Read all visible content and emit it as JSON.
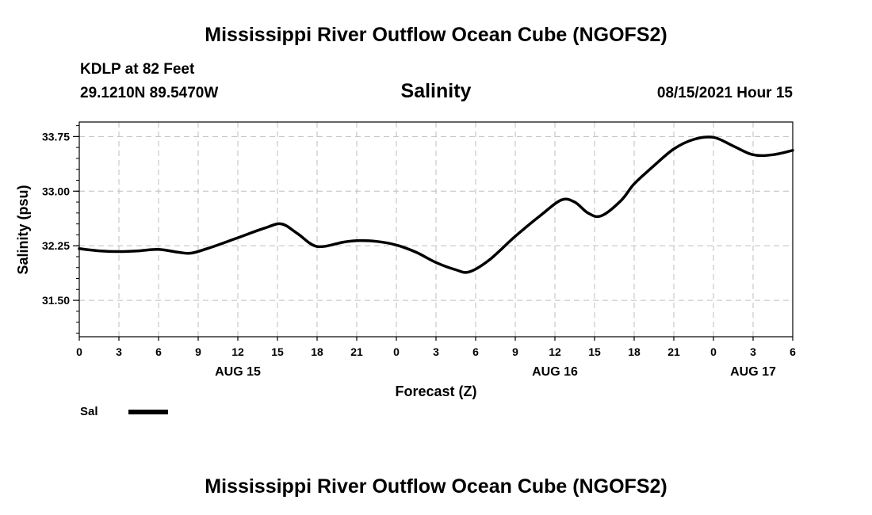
{
  "header": {
    "title": "Mississippi River Outflow Ocean Cube (NGOFS2)",
    "station": "KDLP at 82 Feet",
    "coordinates": "29.1210N  89.5470W",
    "variable": "Salinity",
    "datetime": "08/15/2021 Hour 15"
  },
  "footer": {
    "title": "Mississippi River Outflow Ocean Cube (NGOFS2)"
  },
  "legend": {
    "label": "Sal"
  },
  "chart_data": {
    "type": "line",
    "title": "Salinity",
    "xlabel": "Forecast (Z)",
    "ylabel": "Salinity (psu)",
    "xlim": [
      0,
      54
    ],
    "ylim": [
      31.0,
      33.95
    ],
    "yticks": [
      31.5,
      32.25,
      33.0,
      33.75
    ],
    "ytick_labels": [
      "31.50",
      "32.25",
      "33.00",
      "33.75"
    ],
    "xticks": [
      0,
      3,
      6,
      9,
      12,
      15,
      18,
      21,
      24,
      27,
      30,
      33,
      36,
      39,
      42,
      45,
      48,
      51,
      54
    ],
    "xtick_labels": [
      "0",
      "3",
      "6",
      "9",
      "12",
      "15",
      "18",
      "21",
      "0",
      "3",
      "6",
      "9",
      "12",
      "15",
      "18",
      "21",
      "0",
      "3",
      "6"
    ],
    "date_labels": [
      {
        "hour": 12,
        "label": "AUG 15"
      },
      {
        "hour": 36,
        "label": "AUG 16"
      },
      {
        "hour": 51,
        "label": "AUG 17"
      }
    ],
    "grid": true,
    "series": [
      {
        "name": "Sal",
        "color": "#000000",
        "x": [
          0,
          1.5,
          3,
          4.5,
          6,
          7.5,
          8.5,
          10,
          12,
          14,
          15.3,
          16.5,
          18,
          20,
          21,
          22.5,
          24,
          25.5,
          27,
          28.5,
          29.5,
          31,
          33,
          35,
          36.5,
          37.5,
          38.5,
          39.5,
          41,
          42,
          43.5,
          45,
          46.5,
          48,
          49.5,
          51,
          52.5,
          54
        ],
        "values": [
          32.21,
          32.18,
          32.17,
          32.18,
          32.2,
          32.16,
          32.15,
          32.23,
          32.36,
          32.49,
          32.55,
          32.42,
          32.24,
          32.3,
          32.32,
          32.31,
          32.26,
          32.16,
          32.02,
          31.92,
          31.89,
          32.05,
          32.38,
          32.68,
          32.88,
          32.85,
          32.7,
          32.66,
          32.87,
          33.1,
          33.35,
          33.58,
          33.71,
          33.74,
          33.62,
          33.5,
          33.5,
          33.56
        ]
      }
    ]
  }
}
